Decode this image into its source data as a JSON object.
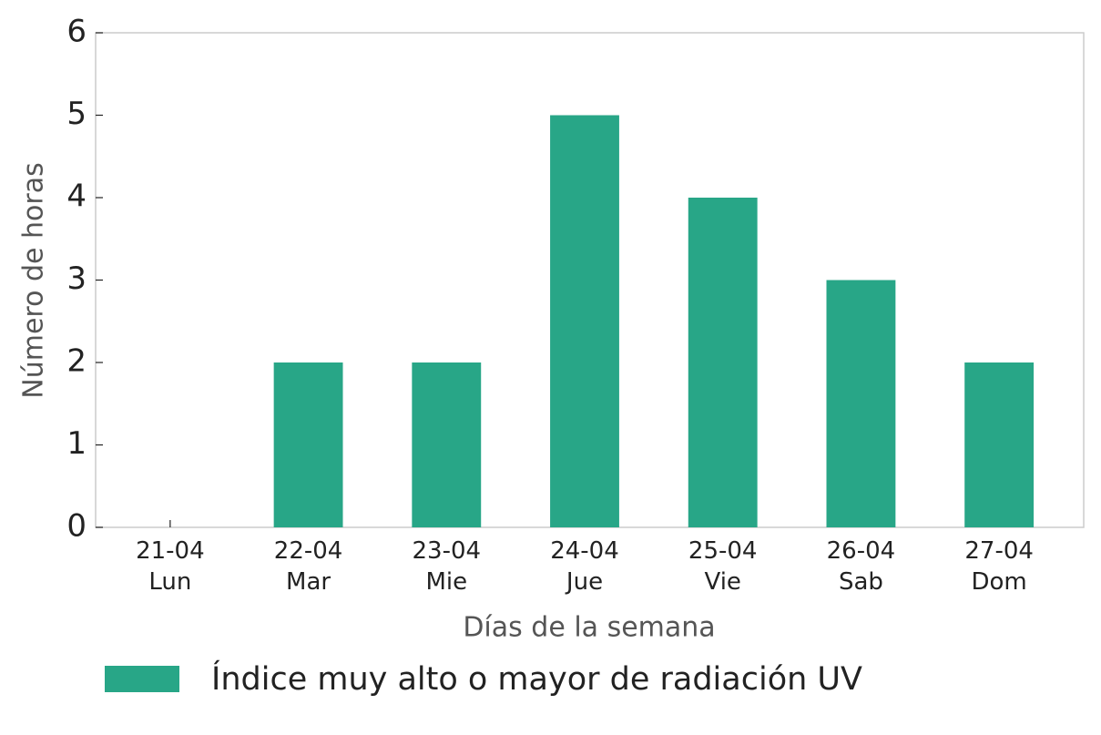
{
  "chart_data": {
    "type": "bar",
    "x_label": "Días de la semana",
    "y_label": "Número de horas",
    "categories": [
      "21-04\nLun",
      "22-04\nMar",
      "23-04\nMie",
      "24-04\nJue",
      "25-04\nVie",
      "26-04\nSab",
      "27-04\nDom"
    ],
    "series": [
      {
        "name": "Índice muy alto o mayor de radiación UV",
        "color": "#28a687",
        "values": [
          0,
          2,
          2,
          5,
          4,
          3,
          2
        ]
      }
    ],
    "ylim": [
      0,
      6
    ],
    "yticks": [
      0,
      1,
      2,
      3,
      4,
      5,
      6
    ],
    "grid": false,
    "legend": "bottom"
  }
}
